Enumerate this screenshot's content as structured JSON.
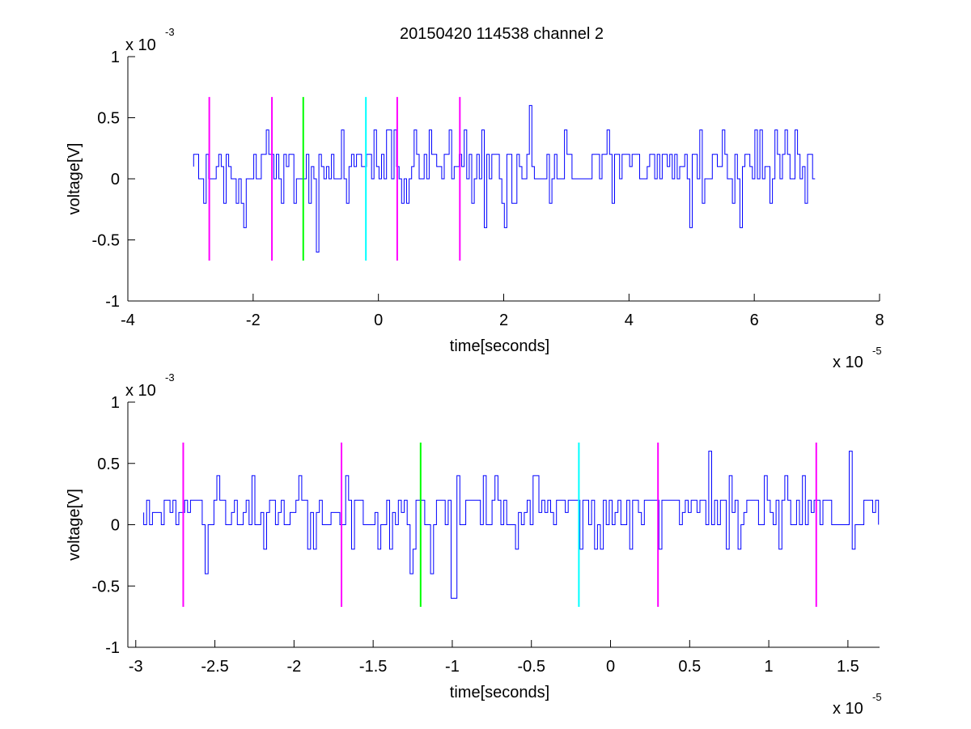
{
  "title": "20150420 114538 channel 2",
  "colors": {
    "signal": "#0000ff",
    "marker_magenta": "#ff00ff",
    "marker_green": "#00ff00",
    "marker_cyan": "#00ffff",
    "axes": "#000000",
    "background": "#ffffff"
  },
  "chart_data": [
    {
      "type": "line",
      "title": "20150420 114538 channel 2",
      "xlabel": "time[seconds]",
      "ylabel": "voltage[V]",
      "x_exponent": "x 10",
      "x_exponent_power": "-5",
      "y_exponent": "x 10",
      "y_exponent_power": "-3",
      "xlim": [
        -4,
        8
      ],
      "ylim": [
        -1,
        1
      ],
      "xticks": [
        -4,
        -2,
        0,
        2,
        4,
        6,
        8
      ],
      "yticks": [
        1,
        0.5,
        0,
        -0.5,
        -1
      ],
      "xtick_labels": [
        "-4",
        "-2",
        "0",
        "2",
        "4",
        "6",
        "8"
      ],
      "ytick_labels": [
        "1",
        "0.5",
        "0",
        "-0.5",
        "-1"
      ],
      "grid": false,
      "signal_range_x": [
        -2.95,
        7.0
      ],
      "signal_levels": [
        -0.6,
        -0.4,
        -0.2,
        0,
        0.2,
        0.4,
        0.6
      ],
      "markers": [
        {
          "x": -2.7,
          "color": "magenta",
          "y_range": [
            -0.67,
            0.67
          ]
        },
        {
          "x": -1.7,
          "color": "magenta",
          "y_range": [
            -0.67,
            0.67
          ]
        },
        {
          "x": -1.2,
          "color": "green",
          "y_range": [
            -0.67,
            0.67
          ]
        },
        {
          "x": -0.2,
          "color": "cyan",
          "y_range": [
            -0.67,
            0.67
          ]
        },
        {
          "x": 0.3,
          "color": "magenta",
          "y_range": [
            -0.67,
            0.67
          ]
        },
        {
          "x": 1.3,
          "color": "magenta",
          "y_range": [
            -0.67,
            0.67
          ]
        }
      ]
    },
    {
      "type": "line",
      "xlabel": "time[seconds]",
      "ylabel": "voltage[V]",
      "x_exponent": "x 10",
      "x_exponent_power": "-5",
      "y_exponent": "x 10",
      "y_exponent_power": "-3",
      "xlim": [
        -3.05,
        1.7
      ],
      "ylim": [
        -1,
        1
      ],
      "xticks": [
        -3,
        -2.5,
        -2,
        -1.5,
        -1,
        -0.5,
        0,
        0.5,
        1,
        1.5
      ],
      "yticks": [
        1,
        0.5,
        0,
        -0.5,
        -1
      ],
      "xtick_labels": [
        "-3",
        "-2.5",
        "-2",
        "-1.5",
        "-1",
        "-0.5",
        "0",
        "0.5",
        "1",
        "1.5"
      ],
      "ytick_labels": [
        "1",
        "0.5",
        "0",
        "-0.5",
        "-1"
      ],
      "grid": false,
      "signal_range_x": [
        -2.95,
        1.7
      ],
      "signal_levels": [
        -0.6,
        -0.4,
        -0.2,
        0,
        0.2,
        0.4,
        0.6
      ],
      "markers": [
        {
          "x": -2.7,
          "color": "magenta",
          "y_range": [
            -0.67,
            0.67
          ]
        },
        {
          "x": -1.7,
          "color": "magenta",
          "y_range": [
            -0.67,
            0.67
          ]
        },
        {
          "x": -1.2,
          "color": "green",
          "y_range": [
            -0.67,
            0.67
          ]
        },
        {
          "x": -0.2,
          "color": "cyan",
          "y_range": [
            -0.67,
            0.67
          ]
        },
        {
          "x": 0.3,
          "color": "magenta",
          "y_range": [
            -0.67,
            0.67
          ]
        },
        {
          "x": 1.3,
          "color": "magenta",
          "y_range": [
            -0.67,
            0.67
          ]
        }
      ]
    }
  ]
}
